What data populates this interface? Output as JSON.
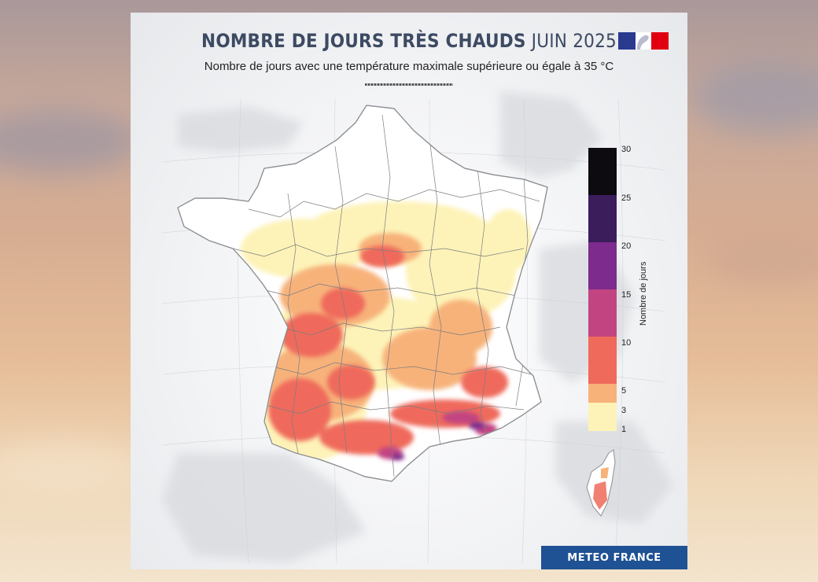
{
  "header": {
    "title_bold": "NOMBRE DE JOURS TRÈS CHAUDS",
    "title_light": "JUIN 2025",
    "subtitle": "Nombre de jours avec une température maximale supérieure ou égale à 35 °C"
  },
  "legend": {
    "title": "Nombre de jours",
    "ticks": [
      "30",
      "25",
      "20",
      "15",
      "10",
      "5",
      "3",
      "1"
    ],
    "classes": [
      {
        "from": 1,
        "to": 3,
        "color": "#fdf3b8"
      },
      {
        "from": 3,
        "to": 5,
        "color": "#f7b27a"
      },
      {
        "from": 5,
        "to": 10,
        "color": "#ef6a5b"
      },
      {
        "from": 10,
        "to": 15,
        "color": "#c24582"
      },
      {
        "from": 15,
        "to": 20,
        "color": "#7d2b8d"
      },
      {
        "from": 20,
        "to": 25,
        "color": "#3b1d5c"
      },
      {
        "from": 25,
        "to": 30,
        "color": "#0d0b10"
      }
    ]
  },
  "brand": {
    "label": "METEO FRANCE"
  },
  "colors": {
    "title": "#3d4a63",
    "brand_bg": "#1f5294",
    "no_data": "#ffffff"
  }
}
